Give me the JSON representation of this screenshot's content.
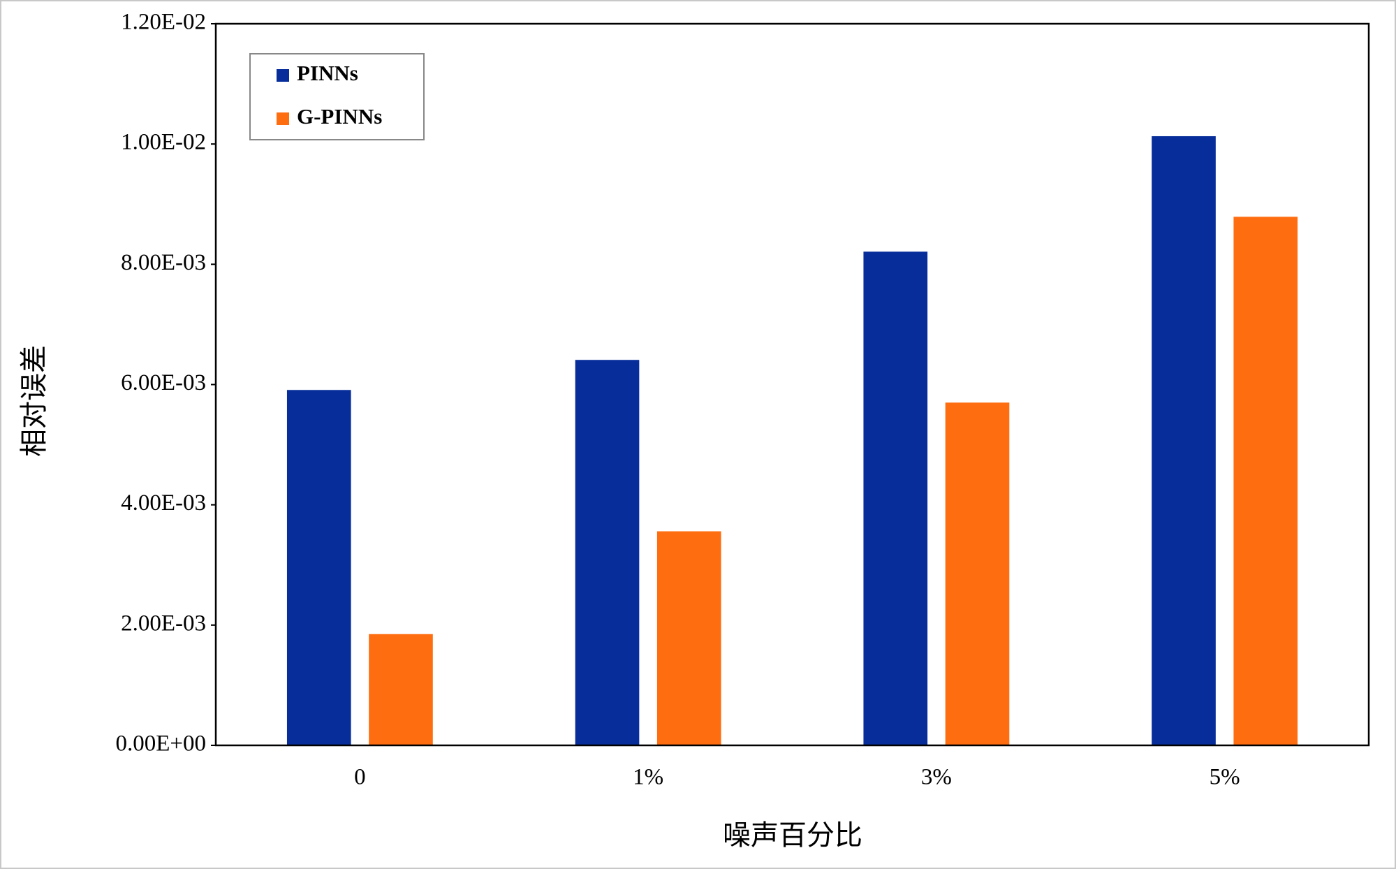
{
  "chart_data": {
    "type": "bar",
    "x_label": "噪声百分比",
    "y_label": "相对误差",
    "categories": [
      "0",
      "1%",
      "3%",
      "5%"
    ],
    "series": [
      {
        "name": "PINNs",
        "color": "#062d9a",
        "values": [
          0.00591,
          0.00641,
          0.00821,
          0.01013
        ]
      },
      {
        "name": "G-PINNs",
        "color": "#ff6d11",
        "values": [
          0.00185,
          0.00356,
          0.0057,
          0.00879
        ]
      }
    ],
    "ylim": [
      0,
      0.012
    ],
    "yticks": [
      {
        "value": 0,
        "label": "0.00E+00"
      },
      {
        "value": 0.002,
        "label": "2.00E-03"
      },
      {
        "value": 0.004,
        "label": "4.00E-03"
      },
      {
        "value": 0.006,
        "label": "6.00E-03"
      },
      {
        "value": 0.008,
        "label": "8.00E-03"
      },
      {
        "value": 0.01,
        "label": "1.00E-02"
      },
      {
        "value": 0.012,
        "label": "1.20E-02"
      }
    ],
    "grid": false,
    "legend": "upper left"
  }
}
